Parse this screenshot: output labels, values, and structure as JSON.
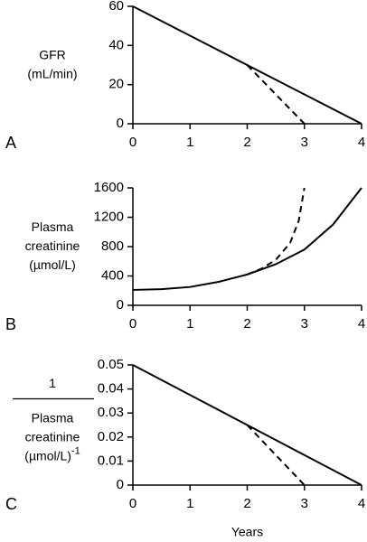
{
  "chart_data": [
    {
      "type": "line",
      "panel_label": "A",
      "y_label_lines": [
        "GFR",
        "(mL/min)"
      ],
      "xlim": [
        0,
        4
      ],
      "xticks": [
        0,
        1,
        2,
        3,
        4
      ],
      "ylim": [
        0,
        60
      ],
      "yticks": [
        0,
        20,
        40,
        60
      ],
      "color": "#000000",
      "series": [
        {
          "style": "solid",
          "x": [
            0,
            4
          ],
          "y": [
            60,
            0
          ]
        },
        {
          "style": "dashed",
          "x": [
            2,
            3
          ],
          "y": [
            30,
            0
          ]
        }
      ]
    },
    {
      "type": "line",
      "panel_label": "B",
      "y_label_lines": [
        "Plasma",
        "creatinine",
        "(µmol/L)"
      ],
      "xlim": [
        0,
        4
      ],
      "xticks": [
        0,
        1,
        2,
        3,
        4
      ],
      "ylim": [
        0,
        1600
      ],
      "yticks": [
        0,
        400,
        800,
        1200,
        1600
      ],
      "color": "#000000",
      "series": [
        {
          "style": "solid",
          "x": [
            0,
            0.5,
            1,
            1.5,
            2,
            2.5,
            3,
            3.5,
            4
          ],
          "y": [
            210,
            220,
            250,
            320,
            420,
            560,
            760,
            1100,
            1600
          ]
        },
        {
          "style": "dashed",
          "x": [
            2,
            2.25,
            2.5,
            2.75,
            2.9,
            3
          ],
          "y": [
            420,
            500,
            620,
            850,
            1150,
            1600
          ]
        }
      ]
    },
    {
      "type": "line",
      "panel_label": "C",
      "y_label_numerator": "1",
      "y_label_lines": [
        "Plasma",
        "creatinine",
        "(µmol/L)"
      ],
      "y_label_superscript": "-1",
      "x_label": "Years",
      "xlim": [
        0,
        4
      ],
      "xticks": [
        0,
        1,
        2,
        3,
        4
      ],
      "ylim": [
        0,
        0.05
      ],
      "yticks": [
        0,
        0.01,
        0.02,
        0.03,
        0.04,
        0.05
      ],
      "color": "#000000",
      "series": [
        {
          "style": "solid",
          "x": [
            0,
            4
          ],
          "y": [
            0.05,
            0
          ]
        },
        {
          "style": "dashed",
          "x": [
            2,
            3
          ],
          "y": [
            0.025,
            0
          ]
        }
      ]
    }
  ]
}
